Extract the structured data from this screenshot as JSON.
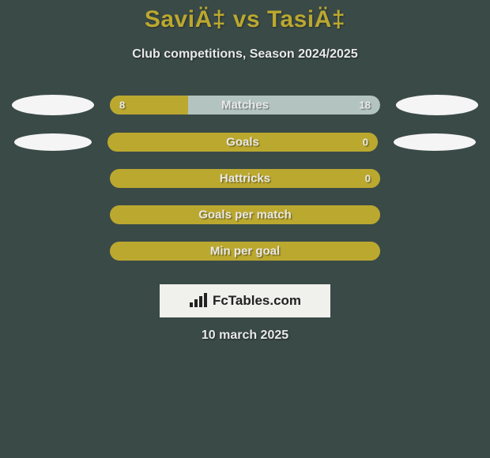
{
  "title": "SaviÄ‡ vs TasiÄ‡",
  "subtitle": "Club competitions, Season 2024/2025",
  "colors": {
    "background": "#3a4a47",
    "accent": "#bba82f",
    "bar_primary": "#bba82f",
    "bar_secondary": "#b3c4c0",
    "text_light": "#e8e8e8",
    "oval": "#f5f5f5",
    "logo_box": "#f0f0ec"
  },
  "bars": [
    {
      "label": "Matches",
      "left_value": "8",
      "right_value": "18",
      "left_ratio": 0.29,
      "left_color": "#bba82f",
      "right_color": "#b3c4c0",
      "show_left_oval": true,
      "show_right_oval": true,
      "oval_row": 1
    },
    {
      "label": "Goals",
      "left_value": "",
      "right_value": "0",
      "left_ratio": 1.0,
      "left_color": "#bba82f",
      "right_color": "#bba82f",
      "show_left_oval": true,
      "show_right_oval": true,
      "oval_row": 2
    },
    {
      "label": "Hattricks",
      "left_value": "",
      "right_value": "0",
      "left_ratio": 1.0,
      "left_color": "#bba82f",
      "right_color": "#bba82f",
      "show_left_oval": false,
      "show_right_oval": false
    },
    {
      "label": "Goals per match",
      "left_value": "",
      "right_value": "",
      "left_ratio": 1.0,
      "left_color": "#bba82f",
      "right_color": "#bba82f",
      "show_left_oval": false,
      "show_right_oval": false
    },
    {
      "label": "Min per goal",
      "left_value": "",
      "right_value": "",
      "left_ratio": 1.0,
      "left_color": "#bba82f",
      "right_color": "#bba82f",
      "show_left_oval": false,
      "show_right_oval": false
    }
  ],
  "logo": {
    "text": "FcTables.com"
  },
  "footer_date": "10 march 2025"
}
